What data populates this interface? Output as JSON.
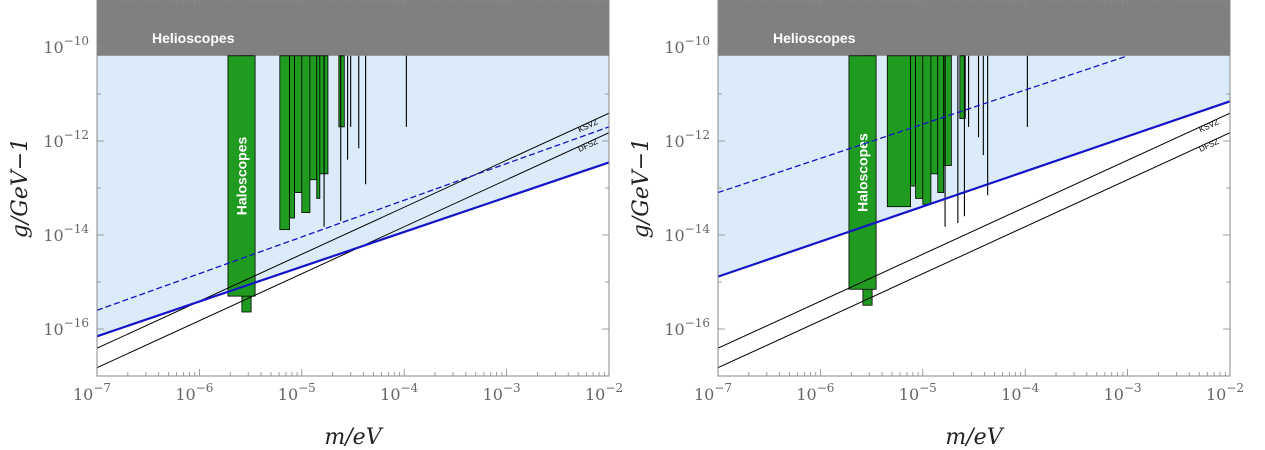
{
  "chart_data": [
    {
      "type": "line",
      "xlabel": "m/eV",
      "ylabel": "g/GeV−1",
      "xscale": "log",
      "yscale": "log",
      "xlim": [
        1e-07,
        0.01
      ],
      "ylim": [
        1e-17,
        1e-09
      ],
      "x_ticks": [
        {
          "value": 1e-07,
          "mant": "10",
          "exp": "−7"
        },
        {
          "value": 1e-06,
          "mant": "10",
          "exp": "−6"
        },
        {
          "value": 1e-05,
          "mant": "10",
          "exp": "−5"
        },
        {
          "value": 0.0001,
          "mant": "10",
          "exp": "−4"
        },
        {
          "value": 0.001,
          "mant": "10",
          "exp": "−3"
        },
        {
          "value": 0.01,
          "mant": "10",
          "exp": "−2"
        }
      ],
      "y_ticks": [
        {
          "value": 1e-10,
          "mant": "10",
          "exp": "−10"
        },
        {
          "value": 1e-12,
          "mant": "10",
          "exp": "−12"
        },
        {
          "value": 1e-14,
          "mant": "10",
          "exp": "−14"
        },
        {
          "value": 1e-16,
          "mant": "10",
          "exp": "−16"
        }
      ],
      "helioscopes": {
        "label": "Helioscopes",
        "g_min": 6.5e-11,
        "color": "#808080"
      },
      "shaded_region": {
        "g_max": 6.5e-11,
        "color": "#dbebf9"
      },
      "lines": [
        {
          "label": "KSVZ",
          "x": [
            1e-07,
            0.01
          ],
          "y": [
            3.9e-17,
            3.9e-12
          ],
          "color": "#000000"
        },
        {
          "label": "DFSZ",
          "x": [
            1e-07,
            0.01
          ],
          "y": [
            1.5e-17,
            1.5e-12
          ],
          "color": "#000000"
        },
        {
          "label": "",
          "x": [
            1e-07,
            0.01
          ],
          "y": [
            2.5e-16,
            2e-12
          ],
          "color": "#1414c8",
          "dashed": true
        },
        {
          "label": "",
          "x": [
            1e-07,
            0.01
          ],
          "y": [
            7e-17,
            3.5e-13
          ],
          "color": "#1414c8"
        }
      ],
      "haloscopes": {
        "label": "Haloscopes",
        "color": "#1f9c1f",
        "main_band": {
          "x": [
            1.9e-06,
            3.5e-06
          ],
          "g_min": 5e-16
        },
        "narrow_band": {
          "x": [
            2.6e-06,
            3.2e-06
          ],
          "g_min": 2.3e-16
        },
        "segments": [
          {
            "x": [
              6.1e-06,
              7.6e-06
            ],
            "g_min": 1.3e-14
          },
          {
            "x": [
              7.6e-06,
              8.5e-06
            ],
            "g_min": 2.3e-14
          },
          {
            "x": [
              8.5e-06,
              1e-05
            ],
            "g_min": 8e-14
          },
          {
            "x": [
              1e-05,
              1.2e-05
            ],
            "g_min": 3e-14
          },
          {
            "x": [
              1.2e-05,
              1.4e-05
            ],
            "g_min": 1.5e-13
          },
          {
            "x": [
              1.4e-05,
              1.5e-05
            ],
            "g_min": 6e-14
          },
          {
            "x": [
              1.5e-05,
              1.8e-05
            ],
            "g_min": 2e-13
          },
          {
            "x": [
              2.3e-05,
              2.6e-05
            ],
            "g_min": 2e-12
          }
        ],
        "spikes": [
          {
            "x": 1.65e-05,
            "g_min": 1.5e-14
          },
          {
            "x": 2.4e-05,
            "g_min": 2e-14
          },
          {
            "x": 2.8e-05,
            "g_min": 4e-13
          },
          {
            "x": 3e-05,
            "g_min": 2e-12
          },
          {
            "x": 3.6e-05,
            "g_min": 7e-13
          },
          {
            "x": 4.2e-05,
            "g_min": 1.2e-13
          },
          {
            "x": 0.000105,
            "g_min": 2e-12
          }
        ]
      }
    },
    {
      "type": "line",
      "xlabel": "m/eV",
      "ylabel": "g/GeV−1",
      "xscale": "log",
      "yscale": "log",
      "xlim": [
        1e-07,
        0.01
      ],
      "ylim": [
        1e-17,
        1e-09
      ],
      "x_ticks": [
        {
          "value": 1e-07,
          "mant": "10",
          "exp": "−7"
        },
        {
          "value": 1e-06,
          "mant": "10",
          "exp": "−6"
        },
        {
          "value": 1e-05,
          "mant": "10",
          "exp": "−5"
        },
        {
          "value": 0.0001,
          "mant": "10",
          "exp": "−4"
        },
        {
          "value": 0.001,
          "mant": "10",
          "exp": "−3"
        },
        {
          "value": 0.01,
          "mant": "10",
          "exp": "−2"
        }
      ],
      "y_ticks": [
        {
          "value": 1e-10,
          "mant": "10",
          "exp": "−10"
        },
        {
          "value": 1e-12,
          "mant": "10",
          "exp": "−12"
        },
        {
          "value": 1e-14,
          "mant": "10",
          "exp": "−14"
        },
        {
          "value": 1e-16,
          "mant": "10",
          "exp": "−16"
        }
      ],
      "helioscopes": {
        "label": "Helioscopes",
        "g_min": 6.5e-11,
        "color": "#808080"
      },
      "shaded_region": {
        "g_max": 6.5e-11,
        "color": "#dbebf9"
      },
      "lines": [
        {
          "label": "KSVZ",
          "x": [
            1e-07,
            0.01
          ],
          "y": [
            3.9e-17,
            3.9e-12
          ],
          "color": "#000000"
        },
        {
          "label": "DFSZ",
          "x": [
            1e-07,
            0.01
          ],
          "y": [
            1.5e-17,
            1.5e-12
          ],
          "color": "#000000"
        },
        {
          "label": "",
          "x": [
            1e-07,
            0.001
          ],
          "y": [
            8e-14,
            6.5e-11
          ],
          "color": "#1414c8",
          "dashed": true
        },
        {
          "label": "",
          "x": [
            1e-07,
            0.01
          ],
          "y": [
            1.3e-15,
            7e-12
          ],
          "color": "#1414c8"
        }
      ],
      "haloscopes": {
        "label": "Haloscopes",
        "color": "#1f9c1f",
        "main_band": {
          "x": [
            1.9e-06,
            3.5e-06
          ],
          "g_min": 7e-16
        },
        "narrow_band": {
          "x": [
            2.6e-06,
            3.2e-06
          ],
          "g_min": 3.2e-16
        },
        "segments": [
          {
            "x": [
              4.5e-06,
              7.6e-06
            ],
            "g_min": 4e-14
          },
          {
            "x": [
              7.6e-06,
              8.5e-06
            ],
            "g_min": 1.1e-13
          },
          {
            "x": [
              8.5e-06,
              1e-05
            ],
            "g_min": 6e-14
          },
          {
            "x": [
              1e-05,
              1.2e-05
            ],
            "g_min": 4.5e-14
          },
          {
            "x": [
              1.2e-05,
              1.4e-05
            ],
            "g_min": 2e-13
          },
          {
            "x": [
              1.4e-05,
              1.6e-05
            ],
            "g_min": 8e-14
          },
          {
            "x": [
              1.6e-05,
              1.9e-05
            ],
            "g_min": 3e-13
          },
          {
            "x": [
              2.3e-05,
              2.6e-05
            ],
            "g_min": 3e-12
          }
        ],
        "spikes": [
          {
            "x": 1.65e-05,
            "g_min": 1.5e-14
          },
          {
            "x": 2.2e-05,
            "g_min": 1.8e-14
          },
          {
            "x": 2.55e-05,
            "g_min": 2.5e-14
          },
          {
            "x": 2.8e-05,
            "g_min": 2e-12
          },
          {
            "x": 3.5e-05,
            "g_min": 1.2e-12
          },
          {
            "x": 3.9e-05,
            "g_min": 5e-13
          },
          {
            "x": 4.3e-05,
            "g_min": 7e-14
          },
          {
            "x": 0.000105,
            "g_min": 2e-12
          }
        ]
      }
    }
  ]
}
